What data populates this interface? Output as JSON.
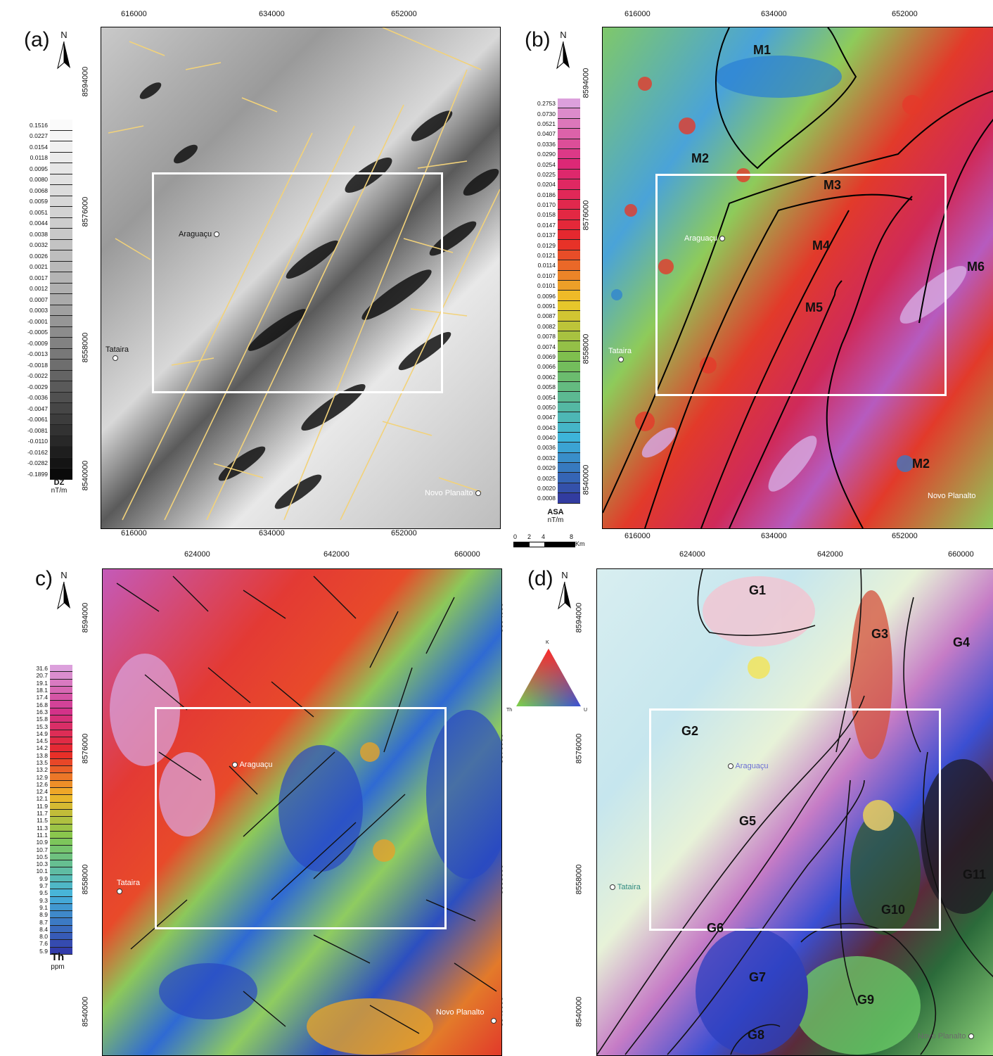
{
  "panels": {
    "a": {
      "label": "(a)",
      "north": "N",
      "legend_title": "DZ",
      "legend_unit": "nT/m"
    },
    "b": {
      "label": "(b)",
      "north": "N",
      "legend_title": "ASA",
      "legend_unit": "nT/m"
    },
    "c": {
      "label": "c)",
      "north": "N",
      "legend_title": "Th",
      "legend_unit": "ppm"
    },
    "d": {
      "label": "(d)",
      "north": "N"
    }
  },
  "ticks_top_ab": [
    "616000",
    "634000",
    "652000"
  ],
  "ticks_top_cd": [
    "624000",
    "642000",
    "660000"
  ],
  "ticks_side": [
    "8594000",
    "8576000",
    "8558000",
    "8540000"
  ],
  "towns": {
    "araguacu": "Araguaçu",
    "tataira": "Tataira",
    "novo_planalto": "Novo Planalto"
  },
  "legend_dz": [
    "0.1516",
    "0.0227",
    "0.0154",
    "0.0118",
    "0.0095",
    "0.0080",
    "0.0068",
    "0.0059",
    "0.0051",
    "0.0044",
    "0.0038",
    "0.0032",
    "0.0026",
    "0.0021",
    "0.0017",
    "0.0012",
    "0.0007",
    "0.0003",
    "-0.0001",
    "-0.0005",
    "-0.0009",
    "-0.0013",
    "-0.0018",
    "-0.0022",
    "-0.0029",
    "-0.0036",
    "-0.0047",
    "-0.0061",
    "-0.0081",
    "-0.0110",
    "-0.0162",
    "-0.0282",
    "-0.1899"
  ],
  "legend_asa": [
    "0.2753",
    "0.0730",
    "0.0521",
    "0.0407",
    "0.0336",
    "0.0290",
    "0.0254",
    "0.0225",
    "0.0204",
    "0.0186",
    "0.0170",
    "0.0158",
    "0.0147",
    "0.0137",
    "0.0129",
    "0.0121",
    "0.0114",
    "0.0107",
    "0.0101",
    "0.0096",
    "0.0091",
    "0.0087",
    "0.0082",
    "0.0078",
    "0.0074",
    "0.0069",
    "0.0066",
    "0.0062",
    "0.0058",
    "0.0054",
    "0.0050",
    "0.0047",
    "0.0043",
    "0.0040",
    "0.0036",
    "0.0032",
    "0.0029",
    "0.0025",
    "0.0020",
    "0.0008"
  ],
  "legend_th": [
    "31.6",
    "20.7",
    "19.1",
    "18.1",
    "17.4",
    "16.8",
    "16.3",
    "15.8",
    "15.3",
    "14.9",
    "14.5",
    "14.2",
    "13.8",
    "13.5",
    "13.2",
    "12.9",
    "12.6",
    "12.4",
    "12.1",
    "11.9",
    "11.7",
    "11.5",
    "11.3",
    "11.1",
    "10.9",
    "10.7",
    "10.5",
    "10.3",
    "10.1",
    "9.9",
    "9.7",
    "9.5",
    "9.3",
    "9.1",
    "8.9",
    "8.7",
    "8.4",
    "8.0",
    "7.6",
    "5.9"
  ],
  "scale_bar": {
    "ticks": [
      "0",
      "2",
      "4",
      "8"
    ],
    "unit": "Km"
  },
  "ternary": {
    "top": "K",
    "left": "Th",
    "right": "U"
  },
  "magnetic_domains": [
    "M1",
    "M2",
    "M3",
    "M4",
    "M5",
    "M6",
    "M2"
  ],
  "gamma_domains": [
    "G1",
    "G2",
    "G3",
    "G4",
    "G5",
    "G6",
    "G7",
    "G8",
    "G9",
    "G10",
    "G11"
  ],
  "colors": {
    "frame_box": "#ffffff",
    "lineaments_a": "#f2d27a",
    "lineaments_c": "#111111"
  }
}
